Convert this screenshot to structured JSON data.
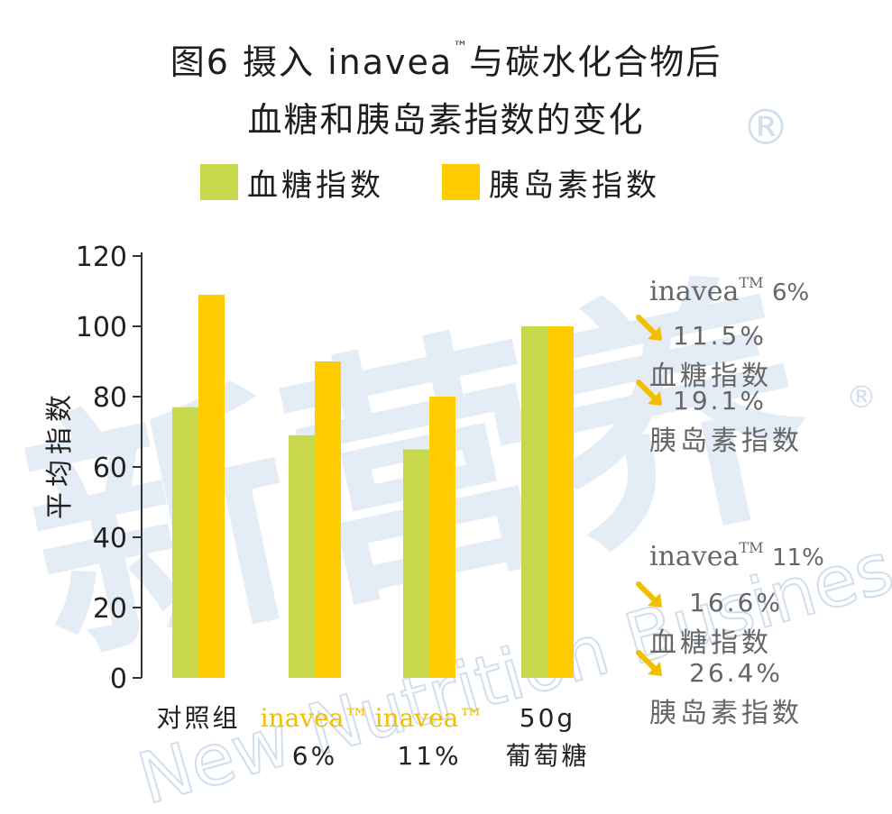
{
  "title": {
    "line1_pre": "图6 摄入 inavea",
    "line1_tm": "™",
    "line1_post": "与碳水化合物后",
    "line2": "血糖和胰岛素指数的变化"
  },
  "colors": {
    "glucose": "#c8d84c",
    "insulin": "#ffcc00",
    "product_label": "#f2bf00",
    "arrow": "#f2bf00",
    "watermark": "#c5d7ea"
  },
  "watermark": {
    "cn": "新营养",
    "en": "New Nutrition Business",
    "reg": "®"
  },
  "chart_data": {
    "type": "bar",
    "ylabel": "平均指数",
    "ylim": [
      0,
      120
    ],
    "yticks": [
      "0",
      "20",
      "40",
      "60",
      "80",
      "100",
      "120"
    ],
    "legend_position": "top",
    "categories": [
      {
        "line1": "对照组",
        "line2": "",
        "is_product": false
      },
      {
        "line1": "inavea™",
        "line2": "6%",
        "is_product": true
      },
      {
        "line1": "inavea™",
        "line2": "11%",
        "is_product": true
      },
      {
        "line1": "50g",
        "line2": "葡萄糖",
        "is_product": false
      }
    ],
    "series": [
      {
        "name": "血糖指数",
        "values": [
          77,
          69,
          65,
          100
        ]
      },
      {
        "name": "胰岛素指数",
        "values": [
          109,
          90,
          80,
          100
        ]
      }
    ]
  },
  "annotations": [
    {
      "product": "inavea",
      "tm": "TM",
      "dose": "6%",
      "items": [
        {
          "pct": "11.5%",
          "label": "血糖指数"
        },
        {
          "pct": "19.1%",
          "label": "胰岛素指数"
        }
      ]
    },
    {
      "product": "inavea",
      "tm": "TM",
      "dose": "11%",
      "items": [
        {
          "pct": "16.6%",
          "label": "血糖指数"
        },
        {
          "pct": "26.4%",
          "label": "胰岛素指数"
        }
      ]
    }
  ]
}
